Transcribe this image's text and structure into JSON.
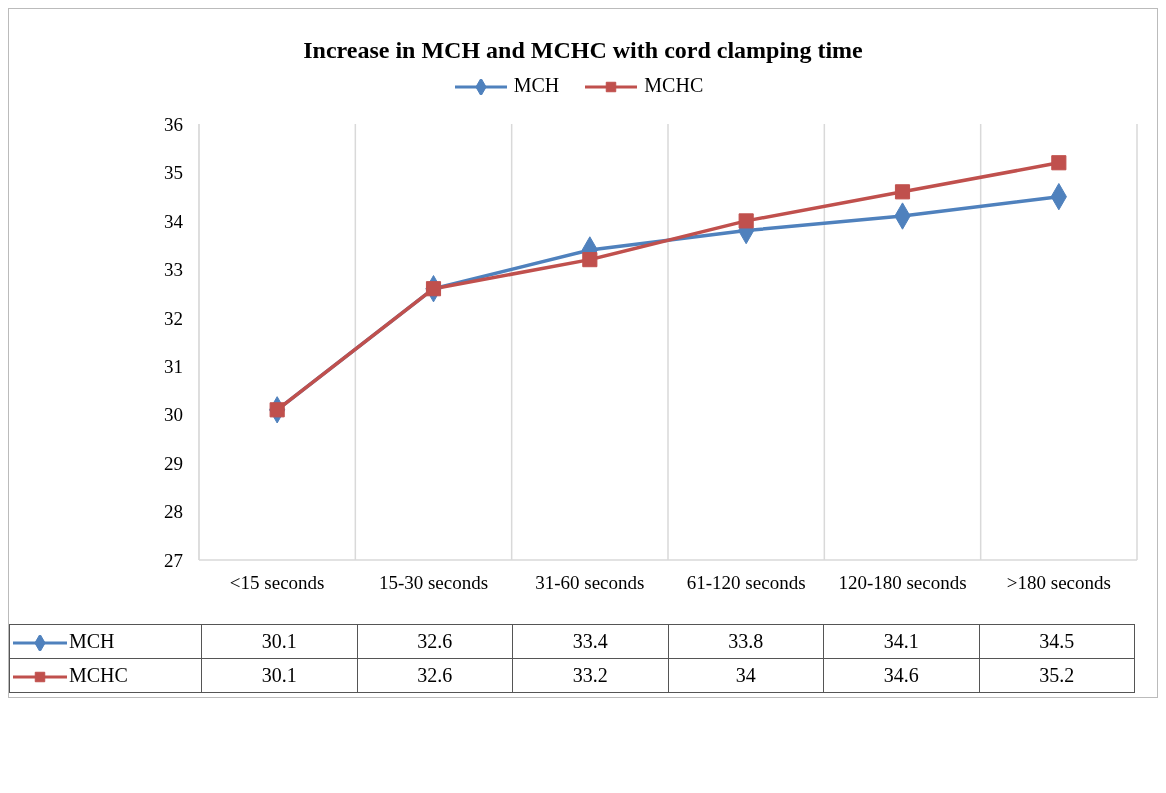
{
  "chart_data": {
    "type": "line",
    "title": "Increase in MCH and MCHC with cord clamping time",
    "categories": [
      "<15 seconds",
      "15-30 seconds",
      "31-60 seconds",
      "61-120 seconds",
      "120-180 seconds",
      ">180 seconds"
    ],
    "series": [
      {
        "name": "MCH",
        "color": "#4f81bd",
        "marker": "diamond",
        "values": [
          30.1,
          32.6,
          33.4,
          33.8,
          34.1,
          34.5
        ]
      },
      {
        "name": "MCHC",
        "color": "#c0504d",
        "marker": "square",
        "values": [
          30.1,
          32.6,
          33.2,
          34,
          34.6,
          35.2
        ]
      }
    ],
    "ylim": [
      27,
      36
    ],
    "yticks": [
      27,
      28,
      29,
      30,
      31,
      32,
      33,
      34,
      35,
      36
    ],
    "grid": "x",
    "legend": "top",
    "data_labels": true,
    "line_style": "solid"
  }
}
